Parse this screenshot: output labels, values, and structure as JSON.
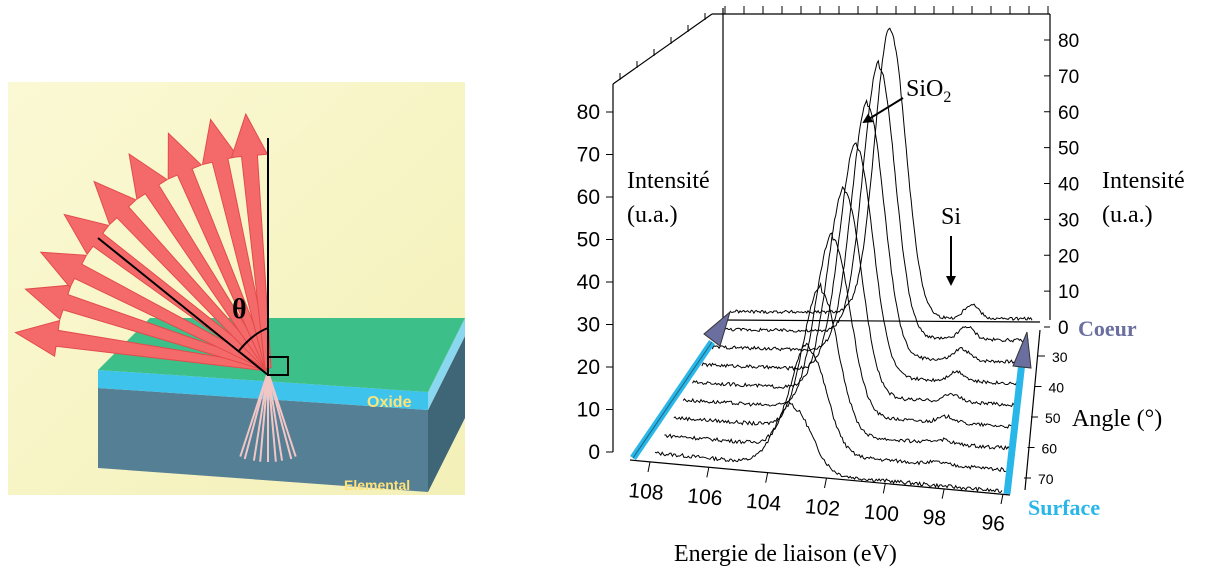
{
  "left_diagram": {
    "angle_symbol": "θ",
    "layer_oxide": "Oxide",
    "layer_elemental": "Elemental"
  },
  "right_chart": {
    "annotations": {
      "sio2": "SiO",
      "sio2_sub": "2",
      "si": "Si",
      "intensity_left_1": "Intensité",
      "intensity_left_2": "(u.a.)",
      "intensity_right_1": "Intensité",
      "intensity_right_2": "(u.a.)",
      "coeur": "Coeur",
      "surface": "Surface",
      "angle_label": "Angle (°)",
      "x_axis_label": "Energie de liaison (eV)"
    },
    "colors": {
      "coeur": "#6b6fa0",
      "surface": "#29b6e8"
    }
  },
  "chart_data": {
    "type": "line",
    "title": "",
    "xlabel": "Energie de liaison (eV)",
    "ylabel": "Intensité (u.a.)",
    "zlabel": "Angle (°)",
    "x_ticks": [
      108,
      106,
      104,
      102,
      100,
      98,
      96
    ],
    "y_ticks_left": [
      0,
      10,
      20,
      30,
      40,
      50,
      60,
      70,
      80
    ],
    "y_ticks_right": [
      0,
      10,
      20,
      30,
      40,
      50,
      60,
      70,
      80
    ],
    "angle_ticks": [
      30,
      40,
      50,
      60,
      70
    ],
    "xlim": [
      109,
      96
    ],
    "ylim": [
      0,
      80
    ],
    "series": [
      {
        "angle": 70,
        "peak_energy": 103.8,
        "peak_height": 15,
        "si_height": 0
      },
      {
        "angle": 65,
        "peak_energy": 103.5,
        "peak_height": 25,
        "si_height": 0.5
      },
      {
        "angle": 60,
        "peak_energy": 103.3,
        "peak_height": 35,
        "si_height": 1
      },
      {
        "angle": 55,
        "peak_energy": 103.1,
        "peak_height": 44,
        "si_height": 1.5
      },
      {
        "angle": 50,
        "peak_energy": 102.9,
        "peak_height": 52,
        "si_height": 2
      },
      {
        "angle": 45,
        "peak_energy": 102.7,
        "peak_height": 60,
        "si_height": 2.5
      },
      {
        "angle": 40,
        "peak_energy": 102.5,
        "peak_height": 67,
        "si_height": 3
      },
      {
        "angle": 35,
        "peak_energy": 102.3,
        "peak_height": 74,
        "si_height": 3.5
      },
      {
        "angle": 30,
        "peak_energy": 102.1,
        "peak_height": 80,
        "si_height": 4
      }
    ],
    "annotations": [
      "SiO2",
      "Si"
    ]
  }
}
